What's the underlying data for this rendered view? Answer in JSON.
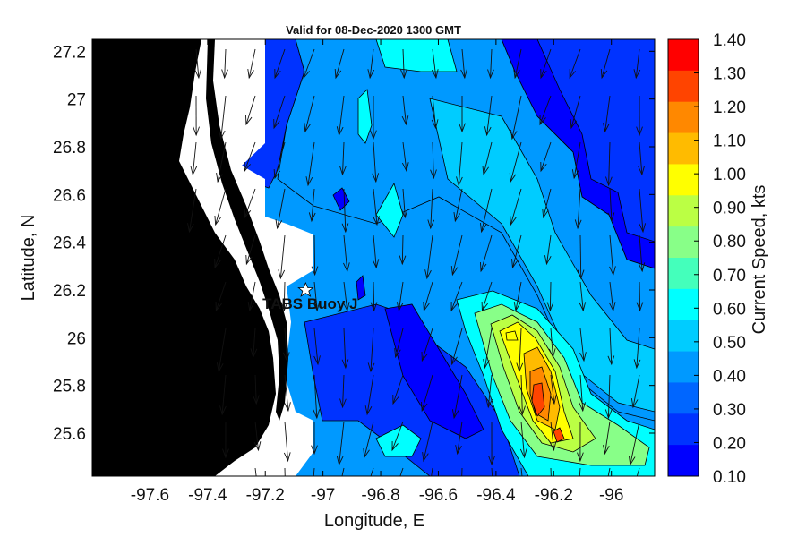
{
  "title": "Valid for 08-Dec-2020 1300 GMT",
  "x_axis": {
    "label": "Longitude, E",
    "ticks": [
      "-97.6",
      "-97.4",
      "-97.2",
      "-97",
      "-96.8",
      "-96.6",
      "-96.4",
      "-96.2",
      "-96"
    ],
    "values": [
      -97.6,
      -97.4,
      -97.2,
      -97.0,
      -96.8,
      -96.6,
      -96.4,
      -96.2,
      -96.0
    ],
    "range": [
      -97.8,
      -95.85
    ]
  },
  "y_axis": {
    "label": "Latitude, N",
    "ticks": [
      "27.2",
      "27",
      "26.8",
      "26.6",
      "26.4",
      "26.2",
      "26",
      "25.8",
      "25.6"
    ],
    "values": [
      27.2,
      27.0,
      26.8,
      26.6,
      26.4,
      26.2,
      26.0,
      25.8,
      25.6
    ],
    "range": [
      25.42,
      27.25
    ]
  },
  "colorbar": {
    "label": "Current Speed, kts",
    "levels": [
      "1.40",
      "1.30",
      "1.20",
      "1.10",
      "1.00",
      "0.90",
      "0.80",
      "0.70",
      "0.60",
      "0.50",
      "0.40",
      "0.30",
      "0.20",
      "0.10"
    ],
    "colors": [
      "#ff0000",
      "#ff4400",
      "#ff8800",
      "#ffbb00",
      "#ffff00",
      "#bbff44",
      "#88ff88",
      "#44ffbb",
      "#00ffff",
      "#00ccff",
      "#0099ff",
      "#0066ff",
      "#0033ff",
      "#0000ff"
    ]
  },
  "buoy": {
    "label": "TABS Buoy J",
    "lon": -97.06,
    "lat": 26.2
  },
  "colors": {
    "land": "#000000",
    "background": "#ffffff",
    "arrow": "#111111"
  }
}
